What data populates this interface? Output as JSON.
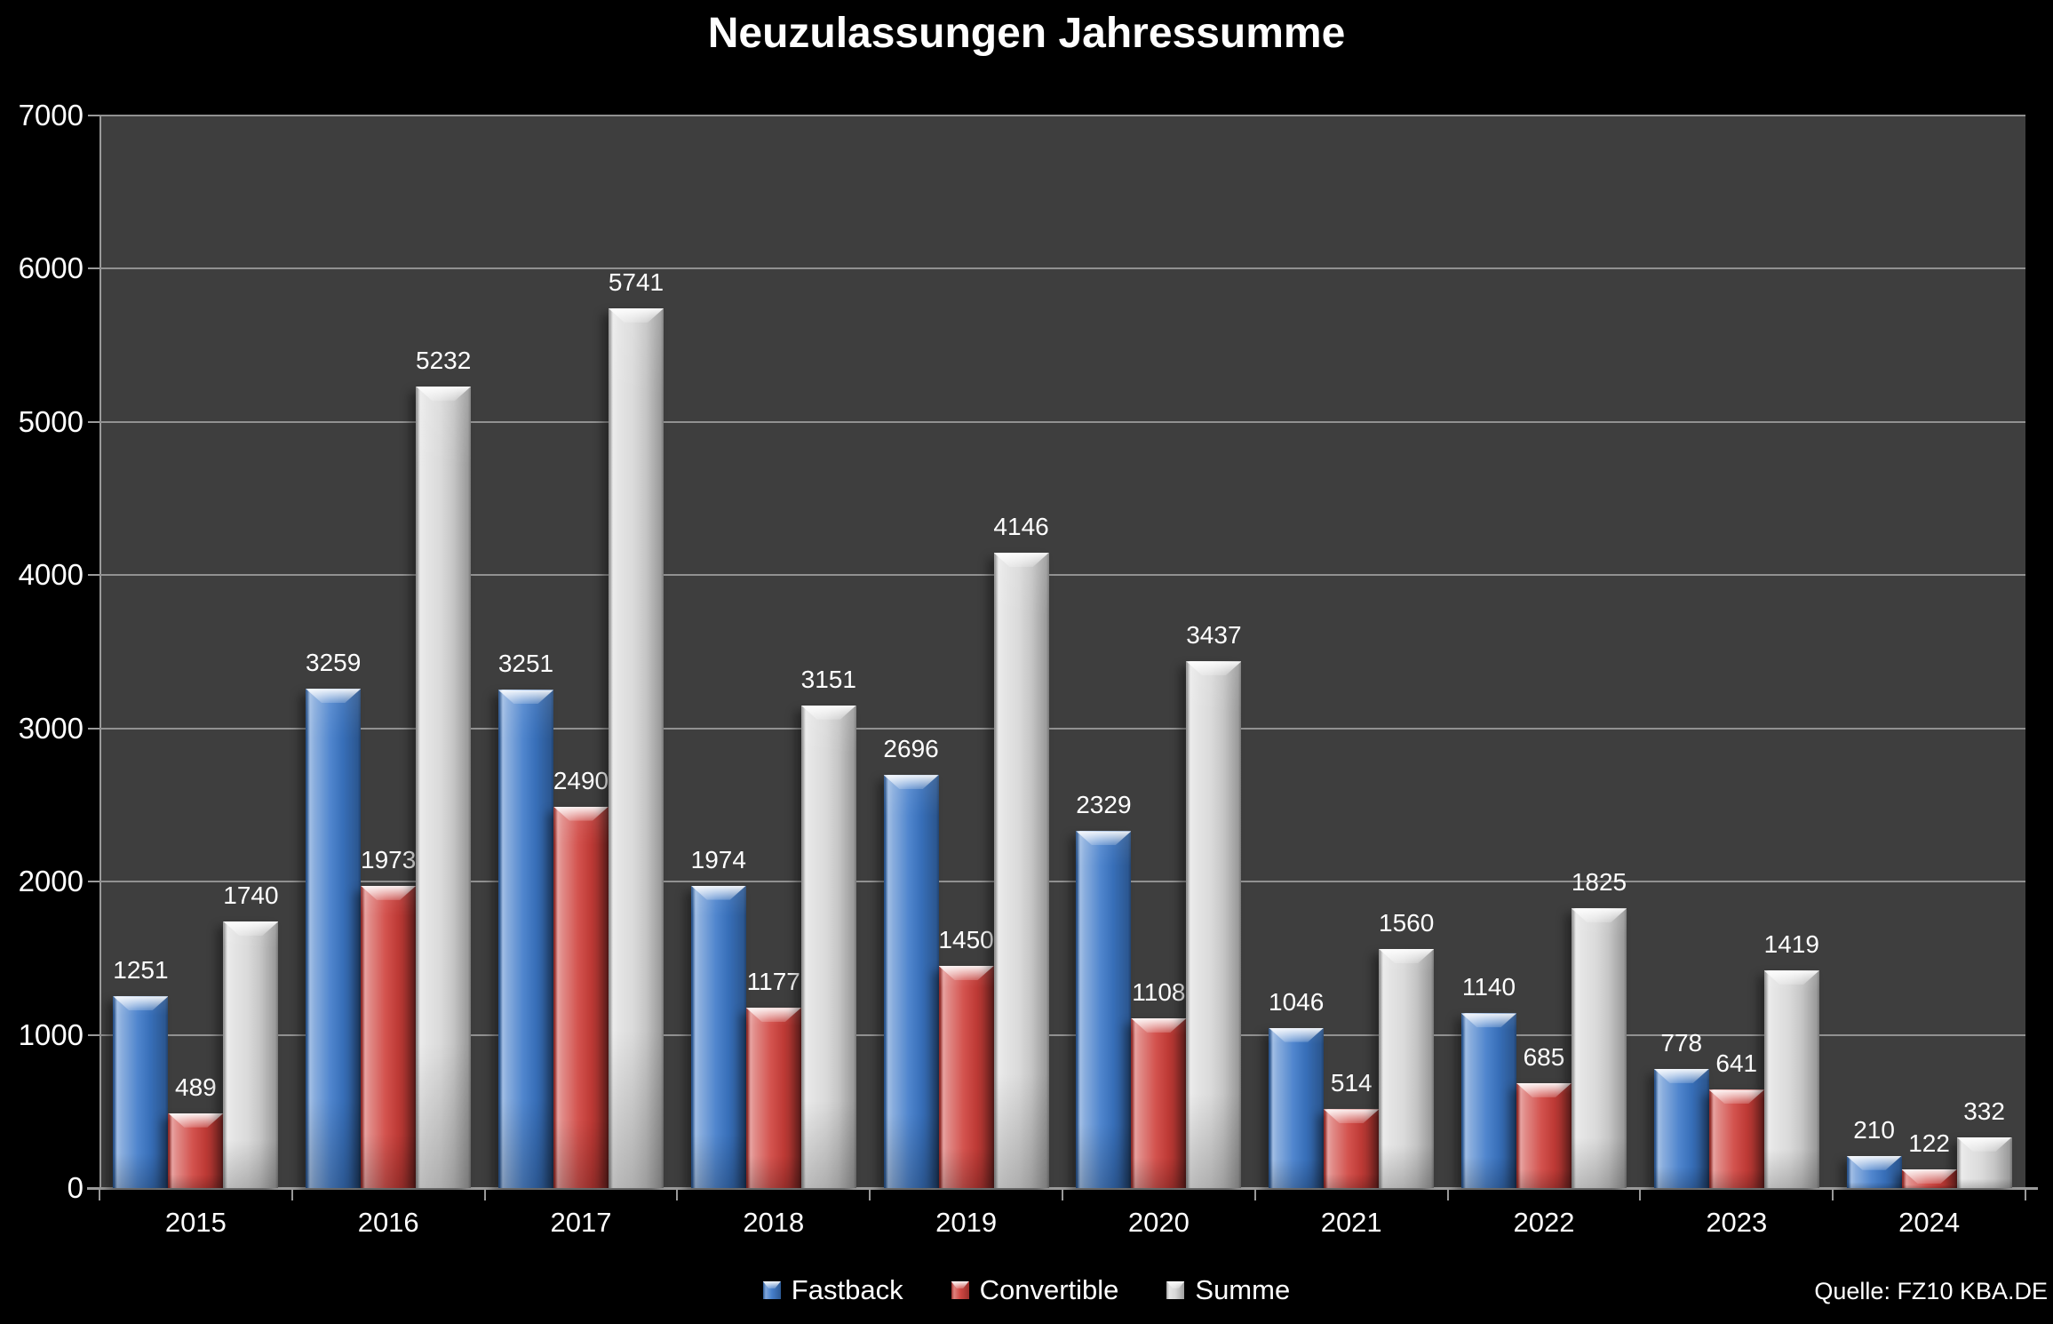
{
  "colors": {
    "background": "#000000",
    "plot_background": "#3E3E3E",
    "gridline": "#919191",
    "axis": "#9A9A9A",
    "text": "#FFFFFF"
  },
  "chart_data": {
    "type": "bar",
    "title": "Neuzulassungen Jahressumme",
    "categories": [
      "2015",
      "2016",
      "2017",
      "2018",
      "2019",
      "2020",
      "2021",
      "2022",
      "2023",
      "2024"
    ],
    "series": [
      {
        "name": "Fastback",
        "color": "#3C78C8",
        "values": [
          1251,
          3259,
          3251,
          1974,
          2696,
          2329,
          1046,
          1140,
          778,
          210
        ]
      },
      {
        "name": "Convertible",
        "color": "#CE3F3A",
        "values": [
          489,
          1973,
          2490,
          1177,
          1450,
          1108,
          514,
          685,
          641,
          122
        ]
      },
      {
        "name": "Summe",
        "color": "#D6D6D6",
        "values": [
          1740,
          5232,
          5741,
          3151,
          4146,
          3437,
          1560,
          1825,
          1419,
          332
        ]
      }
    ],
    "ylim": [
      0,
      7000
    ],
    "ytick_step": 1000,
    "grid": true,
    "legend_position": "bottom",
    "source": "Quelle: FZ10 KBA.DE"
  }
}
